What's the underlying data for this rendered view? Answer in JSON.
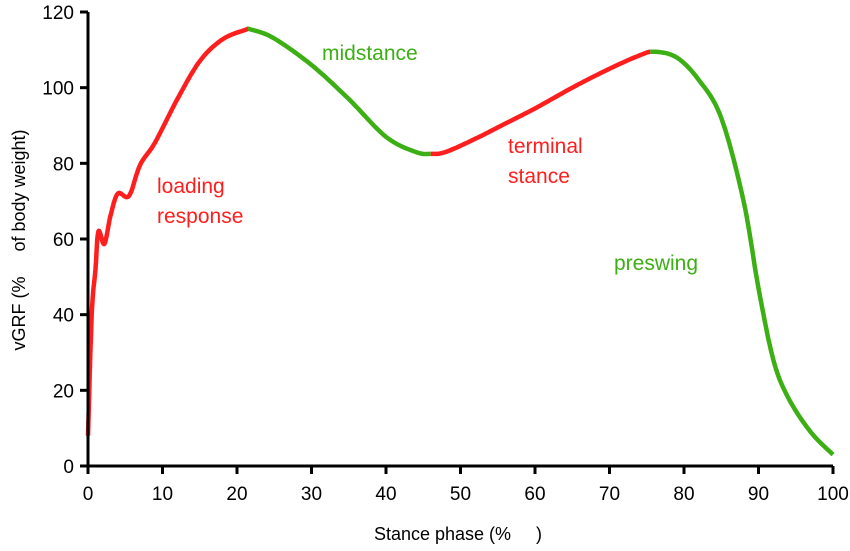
{
  "chart_data": {
    "type": "line",
    "title": "",
    "xlabel": "Stance phase (%     )",
    "ylabel": "vGRF (%     of body weight)",
    "xlim": [
      0,
      100
    ],
    "ylim": [
      0,
      120
    ],
    "xticks": [
      "0",
      "10",
      "20",
      "30",
      "40",
      "50",
      "60",
      "70",
      "80",
      "90",
      "100"
    ],
    "yticks": [
      "0",
      "20",
      "40",
      "60",
      "80",
      "100",
      "120"
    ],
    "grid": false,
    "colors": {
      "red": "#ff1e1e",
      "green": "#3caf14",
      "axis": "#000000"
    },
    "x": [
      0,
      0.5,
      1,
      1.4,
      2.2,
      3,
      4,
      5.5,
      7,
      9,
      12,
      15,
      18,
      21,
      22,
      25,
      30,
      35,
      40,
      44,
      46,
      48,
      52,
      56,
      60,
      65,
      70,
      74,
      76,
      79,
      82,
      85,
      88,
      90,
      92,
      94,
      97,
      100
    ],
    "y": [
      8,
      40,
      52,
      62,
      58.7,
      66,
      72,
      71.4,
      79.6,
      85.5,
      97,
      107,
      112.7,
      115.2,
      115.3,
      113,
      106,
      97,
      87,
      83,
      82.5,
      83,
      86.5,
      90.5,
      94.5,
      100,
      105,
      108.5,
      109.5,
      108,
      102,
      92,
      70,
      47,
      28,
      18,
      9,
      3
    ],
    "segments": [
      {
        "label": "loading response",
        "from": 0,
        "to": 21.5,
        "color": "#ff1e1e"
      },
      {
        "label": "midstance",
        "from": 21.5,
        "to": 46,
        "color": "#3caf14"
      },
      {
        "label": "terminal stance",
        "from": 46,
        "to": 75.5,
        "color": "#ff1e1e"
      },
      {
        "label": "preswing",
        "from": 75.5,
        "to": 100,
        "color": "#3caf14"
      }
    ],
    "annotations": [
      {
        "lines": [
          "loading",
          "response"
        ],
        "color": "#ff1e1e"
      },
      {
        "lines": [
          "midstance"
        ],
        "color": "#3caf14"
      },
      {
        "lines": [
          "terminal",
          "stance"
        ],
        "color": "#ff1e1e"
      },
      {
        "lines": [
          "preswing"
        ],
        "color": "#3caf14"
      }
    ]
  }
}
